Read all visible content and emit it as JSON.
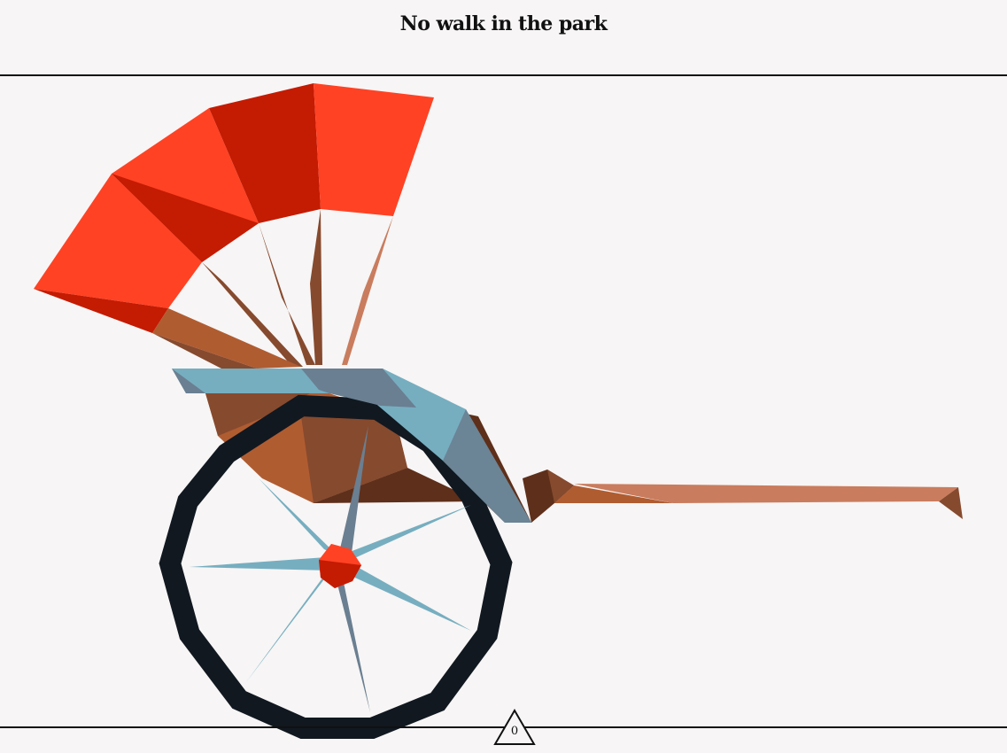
{
  "header": {
    "title": "No walk in the park"
  },
  "hud": {
    "counter_value": "0"
  },
  "colors": {
    "canopy_light": "#ff4224",
    "canopy_dark": "#c41b03",
    "wood_light": "#b05c31",
    "wood_mid": "#864a2e",
    "wood_dark": "#5e2f1a",
    "wood_pale": "#c97c5e",
    "frame_blue": "#76aec0",
    "frame_slate": "#6a7f91",
    "wheel": "#111820",
    "background": "#f7f5f5"
  }
}
